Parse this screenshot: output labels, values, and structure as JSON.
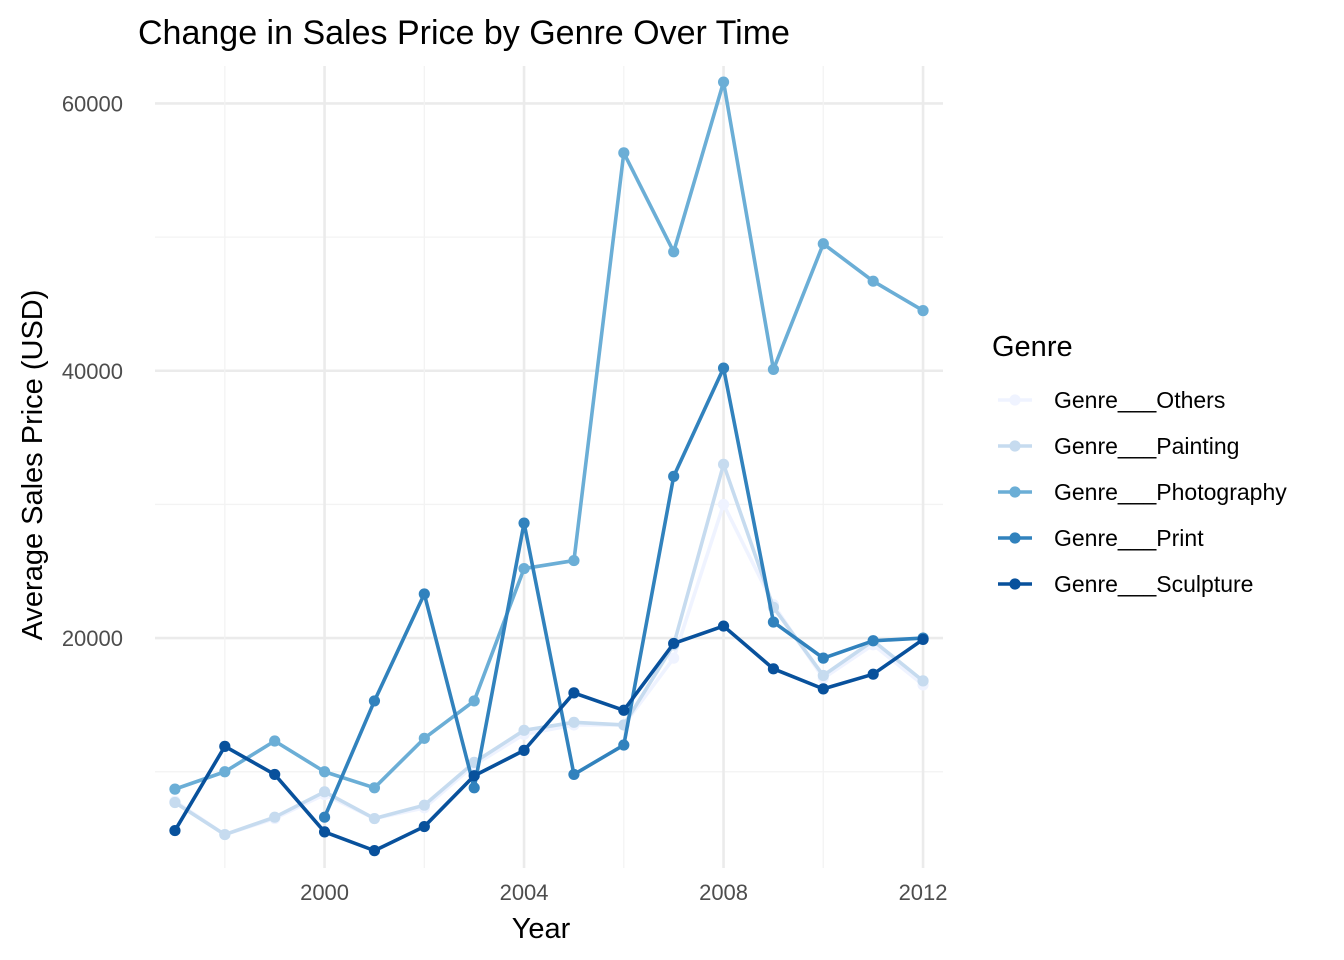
{
  "chart_data": {
    "type": "line",
    "title": "Change in Sales Price by Genre Over Time",
    "xlabel": "Year",
    "ylabel": "Average Sales Price (USD)",
    "x": [
      1997,
      1998,
      1999,
      2000,
      2001,
      2002,
      2003,
      2004,
      2005,
      2006,
      2007,
      2008,
      2009,
      2010,
      2011,
      2012
    ],
    "xlim": [
      1996.6,
      2012.4
    ],
    "ylim": [
      2800,
      62800
    ],
    "x_ticks": [
      2000,
      2004,
      2008,
      2012
    ],
    "y_ticks": [
      20000,
      40000,
      60000
    ],
    "x_tick_labels": [
      "2000",
      "2004",
      "2008",
      "2012"
    ],
    "y_tick_labels": [
      "20000",
      "40000",
      "60000"
    ],
    "grid": true,
    "legend": {
      "title": "Genre",
      "position": "right"
    },
    "series": [
      {
        "name": "Genre___Others",
        "color": "#eff3ff",
        "values": [
          7800,
          5300,
          6500,
          8300,
          6500,
          7300,
          10500,
          12800,
          13500,
          13500,
          18500,
          30000,
          22500,
          17000,
          19500,
          16500
        ]
      },
      {
        "name": "Genre___Painting",
        "color": "#c6dbef",
        "values": [
          7700,
          5300,
          6600,
          8500,
          6500,
          7500,
          10700,
          13100,
          13700,
          13500,
          19500,
          33000,
          22300,
          17200,
          19800,
          16800
        ]
      },
      {
        "name": "Genre___Photography",
        "color": "#6baed6",
        "values": [
          8700,
          10000,
          12300,
          10000,
          8800,
          12500,
          15300,
          25200,
          25800,
          56300,
          48900,
          61600,
          40100,
          49500,
          46700,
          44500
        ]
      },
      {
        "name": "Genre___Print",
        "color": "#3182bd",
        "values": [
          null,
          null,
          null,
          6600,
          15300,
          23300,
          8800,
          28600,
          9800,
          12000,
          32100,
          40200,
          21200,
          18500,
          19800,
          20000
        ]
      },
      {
        "name": "Genre___Sculpture",
        "color": "#08519c",
        "values": [
          5600,
          11900,
          9800,
          5500,
          4100,
          5900,
          9700,
          11600,
          15900,
          14600,
          19600,
          20900,
          17700,
          16200,
          17300,
          19900
        ]
      }
    ]
  }
}
